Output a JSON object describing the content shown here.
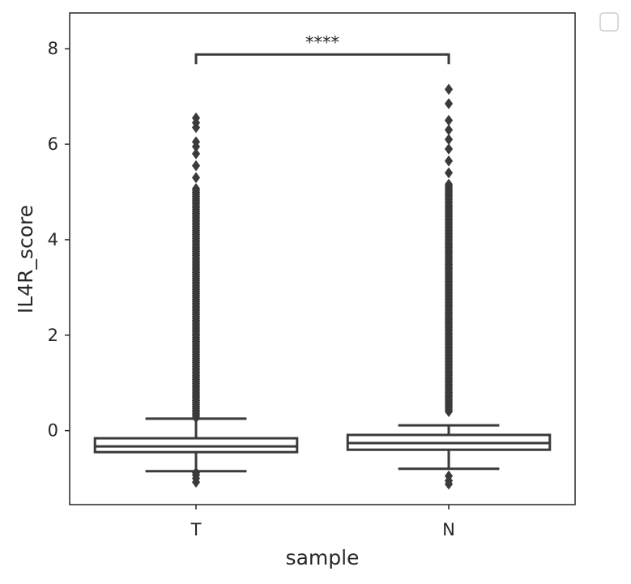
{
  "chart_data": {
    "type": "boxplot",
    "xlabel": "sample",
    "ylabel": "IL4R_score",
    "categories": [
      "T",
      "N"
    ],
    "ylim": [
      -1.55,
      8.75
    ],
    "yticks": [
      0,
      2,
      4,
      6,
      8
    ],
    "grid": false,
    "legend": "top-right, empty",
    "box_color": "#3a3a3a",
    "significance": {
      "label": "****",
      "between": [
        "T",
        "N"
      ],
      "y": 7.88
    },
    "boxes": [
      {
        "category": "T",
        "whisker_low": -0.85,
        "q1": -0.45,
        "median": -0.33,
        "q3": -0.16,
        "whisker_high": 0.25,
        "flier_range_high": [
          0.27,
          5.1
        ],
        "fliers_high": [
          5.3,
          5.55,
          5.8,
          5.95,
          6.05,
          6.35,
          6.45,
          6.55
        ],
        "fliers_low": [
          -0.88,
          -0.93,
          -1.0,
          -1.08
        ]
      },
      {
        "category": "N",
        "whisker_low": -0.8,
        "q1": -0.4,
        "median": -0.26,
        "q3": -0.09,
        "whisker_high": 0.11,
        "flier_range_high": [
          0.4,
          5.2
        ],
        "fliers_high": [
          5.4,
          5.65,
          5.9,
          6.1,
          6.3,
          6.5,
          6.85,
          7.15
        ],
        "fliers_low": [
          -0.95,
          -1.05,
          -1.12
        ]
      }
    ]
  }
}
